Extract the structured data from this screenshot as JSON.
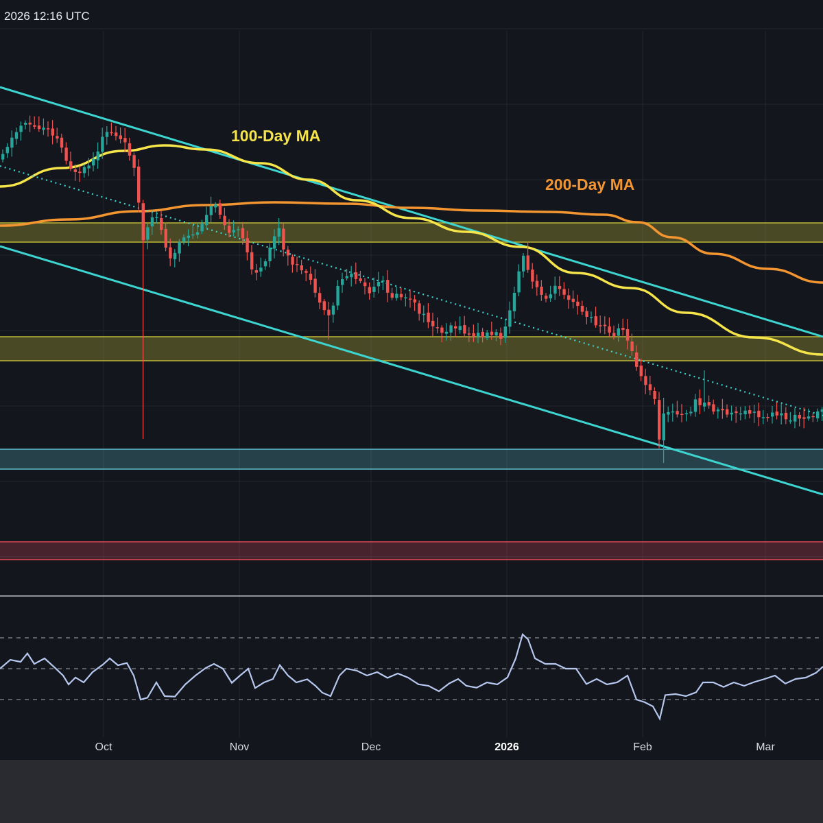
{
  "header": {
    "timestamp": "2026 12:16 UTC"
  },
  "colors": {
    "background": "#14161e",
    "bottom_panel": "#2a2b31",
    "grid": "#23262f",
    "up_candle": "#26a69a",
    "down_candle": "#ef5350",
    "channel": "#3dd5d0",
    "ma100": "#f5e44a",
    "ma200": "#f39530",
    "zone_yellow": "#bfb737",
    "zone_blue": "#5fc2cf",
    "zone_red": "#e04a5a",
    "rsi_line": "#b6c8ee"
  },
  "chart_data": {
    "type": "candlestick",
    "title": "",
    "annotations": [
      {
        "text": "100-Day MA",
        "color": "#f5e44a",
        "series": "ma100"
      },
      {
        "text": "200-Day MA",
        "color": "#f39530",
        "series": "ma200"
      }
    ],
    "x_ticks": [
      {
        "label": "Oct",
        "bold": false
      },
      {
        "label": "Nov",
        "bold": false
      },
      {
        "label": "Dec",
        "bold": false
      },
      {
        "label": "2026",
        "bold": true
      },
      {
        "label": "Feb",
        "bold": false
      },
      {
        "label": "Mar",
        "bold": false
      }
    ],
    "series": [
      {
        "name": "100-Day MA",
        "type": "line",
        "color": "#f5e44a"
      },
      {
        "name": "200-Day MA",
        "type": "line",
        "color": "#f39530"
      }
    ],
    "zones": [
      {
        "kind": "resistance",
        "color": "#bfb737"
      },
      {
        "kind": "support",
        "color": "#bfb737"
      },
      {
        "kind": "support",
        "color": "#5fc2cf"
      },
      {
        "kind": "support",
        "color": "#e04a5a"
      }
    ],
    "indicator": {
      "name": "RSI",
      "levels": [
        70,
        50,
        30
      ],
      "ylim": [
        20,
        85
      ]
    },
    "grid": true,
    "legend": "none"
  }
}
